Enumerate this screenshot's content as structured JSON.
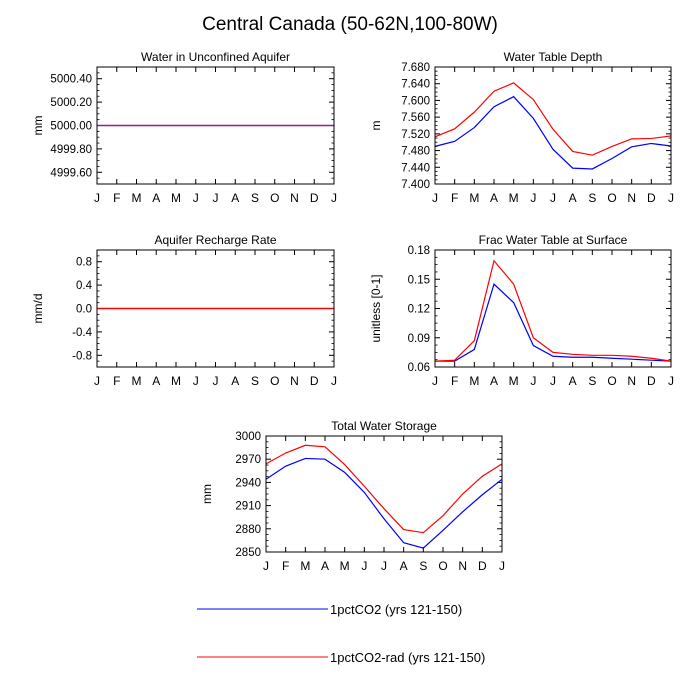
{
  "title": "Central Canada (50-62N,100-80W)",
  "months": [
    "J",
    "F",
    "M",
    "A",
    "M",
    "J",
    "J",
    "A",
    "S",
    "O",
    "N",
    "D",
    "J"
  ],
  "colors": {
    "series1": "#0000ff",
    "series2": "#ff0000",
    "axis": "#000000"
  },
  "legend": [
    {
      "label": "1pctCO2 (yrs 121-150)",
      "color": "#0000ff"
    },
    {
      "label": "1pctCO2-rad (yrs 121-150)",
      "color": "#ff0000"
    }
  ],
  "chart_data": [
    {
      "type": "line",
      "title": "Water in Unconfined Aquifer",
      "ylabel": "mm",
      "ylim": [
        4999.5,
        5000.5
      ],
      "yticks": [
        4999.6,
        4999.8,
        5000.0,
        5000.2,
        5000.4
      ],
      "ytick_labels": [
        "4999.60",
        "4999.80",
        "5000.00",
        "5000.20",
        "5000.40"
      ],
      "categories": [
        "J",
        "F",
        "M",
        "A",
        "M",
        "J",
        "J",
        "A",
        "S",
        "O",
        "N",
        "D",
        "J"
      ],
      "series": [
        {
          "name": "1pctCO2 (yrs 121-150)",
          "values": [
            5000,
            5000,
            5000,
            5000,
            5000,
            5000,
            5000,
            5000,
            5000,
            5000,
            5000,
            5000,
            5000
          ]
        },
        {
          "name": "1pctCO2-rad (yrs 121-150)",
          "values": [
            5000,
            5000,
            5000,
            5000,
            5000,
            5000,
            5000,
            5000,
            5000,
            5000,
            5000,
            5000,
            5000
          ]
        }
      ]
    },
    {
      "type": "line",
      "title": "Water Table Depth",
      "ylabel": "m",
      "ylim": [
        7.4,
        7.68
      ],
      "yticks": [
        7.4,
        7.44,
        7.48,
        7.52,
        7.56,
        7.6,
        7.64,
        7.68
      ],
      "ytick_labels": [
        "7.400",
        "7.440",
        "7.480",
        "7.520",
        "7.560",
        "7.600",
        "7.640",
        "7.680"
      ],
      "categories": [
        "J",
        "F",
        "M",
        "A",
        "M",
        "J",
        "J",
        "A",
        "S",
        "O",
        "N",
        "D",
        "J"
      ],
      "series": [
        {
          "name": "1pctCO2 (yrs 121-150)",
          "values": [
            7.49,
            7.502,
            7.535,
            7.585,
            7.609,
            7.557,
            7.483,
            7.438,
            7.436,
            7.461,
            7.489,
            7.497,
            7.491
          ]
        },
        {
          "name": "1pctCO2-rad (yrs 121-150)",
          "values": [
            7.513,
            7.532,
            7.572,
            7.622,
            7.642,
            7.602,
            7.531,
            7.478,
            7.469,
            7.49,
            7.508,
            7.509,
            7.515
          ]
        }
      ]
    },
    {
      "type": "line",
      "title": "Aquifer Recharge Rate",
      "ylabel": "mm/d",
      "ylim": [
        -1,
        1
      ],
      "yticks": [
        -0.8,
        -0.4,
        0.0,
        0.4,
        0.8
      ],
      "ytick_labels": [
        "-0.8",
        "-0.4",
        "0.0",
        "0.4",
        "0.8"
      ],
      "categories": [
        "J",
        "F",
        "M",
        "A",
        "M",
        "J",
        "J",
        "A",
        "S",
        "O",
        "N",
        "D",
        "J"
      ],
      "series": [
        {
          "name": "1pctCO2 (yrs 121-150)",
          "values": [
            0,
            0,
            0,
            0,
            0,
            0,
            0,
            0,
            0,
            0,
            0,
            0,
            0
          ]
        },
        {
          "name": "1pctCO2-rad (yrs 121-150)",
          "values": [
            0,
            0,
            0,
            0,
            0,
            0,
            0,
            0,
            0,
            0,
            0,
            0,
            0
          ]
        }
      ]
    },
    {
      "type": "line",
      "title": "Frac Water Table at Surface",
      "ylabel": "unitless [0-1]",
      "ylim": [
        0.06,
        0.18
      ],
      "yticks": [
        0.06,
        0.09,
        0.12,
        0.15,
        0.18
      ],
      "ytick_labels": [
        "0.06",
        "0.09",
        "0.12",
        "0.15",
        "0.18"
      ],
      "categories": [
        "J",
        "F",
        "M",
        "A",
        "M",
        "J",
        "J",
        "A",
        "S",
        "O",
        "N",
        "D",
        "J"
      ],
      "series": [
        {
          "name": "1pctCO2 (yrs 121-150)",
          "values": [
            0.066,
            0.066,
            0.078,
            0.145,
            0.126,
            0.082,
            0.071,
            0.07,
            0.07,
            0.069,
            0.068,
            0.067,
            0.066
          ]
        },
        {
          "name": "1pctCO2-rad (yrs 121-150)",
          "values": [
            0.066,
            0.067,
            0.087,
            0.169,
            0.145,
            0.09,
            0.075,
            0.073,
            0.072,
            0.072,
            0.071,
            0.069,
            0.066
          ]
        }
      ]
    },
    {
      "type": "line",
      "title": "Total Water Storage",
      "ylabel": "mm",
      "ylim": [
        2850,
        3000
      ],
      "yticks": [
        2850,
        2880,
        2910,
        2940,
        2970,
        3000
      ],
      "ytick_labels": [
        "2850",
        "2880",
        "2910",
        "2940",
        "2970",
        "3000"
      ],
      "categories": [
        "J",
        "F",
        "M",
        "A",
        "M",
        "J",
        "J",
        "A",
        "S",
        "O",
        "N",
        "D",
        "J"
      ],
      "series": [
        {
          "name": "1pctCO2 (yrs 121-150)",
          "values": [
            2944,
            2961,
            2971,
            2970,
            2953,
            2927,
            2893,
            2862,
            2855,
            2878,
            2902,
            2924,
            2944
          ]
        },
        {
          "name": "1pctCO2-rad (yrs 121-150)",
          "values": [
            2964,
            2978,
            2988,
            2986,
            2963,
            2935,
            2906,
            2879,
            2875,
            2897,
            2925,
            2948,
            2964
          ]
        }
      ]
    }
  ]
}
